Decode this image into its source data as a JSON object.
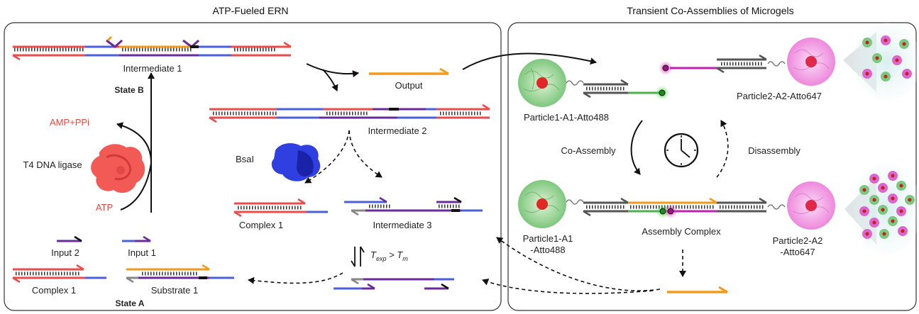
{
  "panels": {
    "left_title": "ATP-Fueled ERN",
    "right_title": "Transient Co-Assemblies of Microgels"
  },
  "left": {
    "intermediate1": "Intermediate 1",
    "state_b": "State B",
    "output": "Output",
    "intermediate2": "Intermediate 2",
    "amp_ppi": "AMP+PPi",
    "t4_ligase": "T4 DNA ligase",
    "atp": "ATP",
    "bsai": "BsaI",
    "complex1_mid": "Complex 1",
    "intermediate3": "Intermediate 3",
    "input2": "Input 2",
    "input1": "Input 1",
    "complex1_bottom": "Complex 1",
    "substrate1": "Substrate 1",
    "state_a": "State A",
    "temp_t1": "T",
    "temp_sub1": "exp",
    "temp_op": " > T",
    "temp_sub2": "m"
  },
  "right": {
    "particle1_a1_atto488": "Particle1-A1-Atto488",
    "particle2_a2_atto647": "Particle2-A2-Atto647",
    "co_assembly": "Co-Assembly",
    "disassembly": "Disassembly",
    "particle1_line1": "Particle1-A1",
    "particle1_line2": "-Atto488",
    "assembly_complex": "Assembly Complex",
    "particle2_line1": "Particle2-A2",
    "particle2_line2": "-Atto647"
  },
  "colors": {
    "red_strand": "#ee4b4b",
    "blue_strand": "#4a5fe0",
    "orange_strand": "#f39a1e",
    "purple_strand": "#6a2a9a",
    "magenta_strand": "#c020b0",
    "green_strand": "#4ab04a",
    "gray_strand": "#555555",
    "ligase_red": "#f25a55",
    "bsai_blue": "#3040e0",
    "green_particle": "#8ad08a",
    "pink_particle": "#f090e0"
  }
}
